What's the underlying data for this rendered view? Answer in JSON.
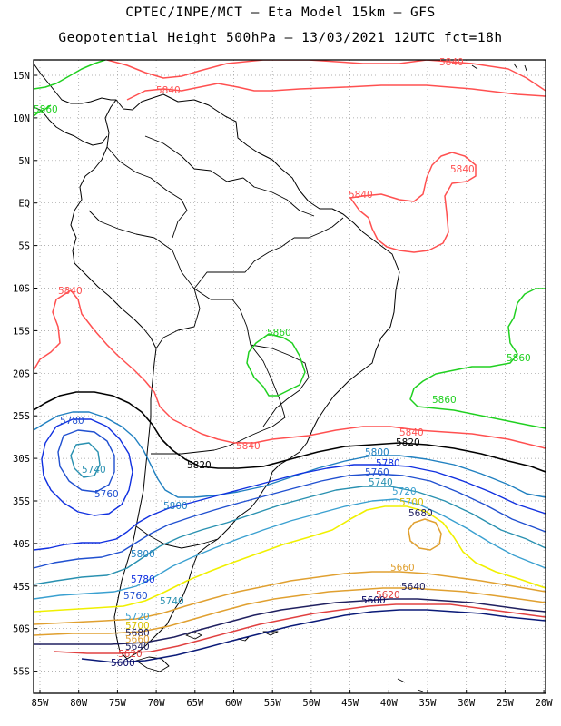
{
  "header": {
    "line1": "CPTEC/INPE/MCT —  Eta Model 15km — GFS",
    "line2": "Geopotential Height 500hPa — 13/03/2021 12UTC fct=18h"
  },
  "axes": {
    "lat_ticks": [
      "15N",
      "10N",
      "5N",
      "EQ",
      "5S",
      "10S",
      "15S",
      "20S",
      "25S",
      "30S",
      "35S",
      "40S",
      "45S",
      "50S",
      "55S"
    ],
    "lon_ticks": [
      "85W",
      "80W",
      "75W",
      "70W",
      "65W",
      "60W",
      "55W",
      "50W",
      "45W",
      "40W",
      "35W",
      "30W",
      "25W",
      "20W"
    ]
  },
  "colors": {
    "c5580": "#000060",
    "c5600": "#0a1a78",
    "c5620": "#e04040",
    "c5640": "#202060",
    "c5660": "#e0a030",
    "c5680": "#e0a030",
    "c5700": "#f0f000",
    "c5720": "#3aa0d0",
    "c5740": "#2890b0",
    "c5760": "#2050d0",
    "c5780": "#1030e0",
    "c5800": "#2080c0",
    "c5820": "#000000",
    "c5840": "#ff5050",
    "c5860": "#20d020",
    "coast": "#000000"
  },
  "contour_labels": [
    {
      "id": "l5840a",
      "text": "5840"
    },
    {
      "id": "l5840b",
      "text": "5840"
    },
    {
      "id": "l5840c",
      "text": "5840"
    },
    {
      "id": "l5840d",
      "text": "5840"
    },
    {
      "id": "l5840e",
      "text": "5840"
    },
    {
      "id": "l5840f",
      "text": "5840"
    },
    {
      "id": "l5840g",
      "text": "5840"
    },
    {
      "id": "l5860a",
      "text": "5860"
    },
    {
      "id": "l5860b",
      "text": "5860"
    },
    {
      "id": "l5860c",
      "text": "5860"
    },
    {
      "id": "l5860d",
      "text": "5860"
    },
    {
      "id": "l5780a",
      "text": "5780"
    },
    {
      "id": "l5740a",
      "text": "5740"
    },
    {
      "id": "l5760a",
      "text": "5760"
    },
    {
      "id": "l5820a",
      "text": "5820"
    },
    {
      "id": "l5820b",
      "text": "5820"
    },
    {
      "id": "l5800a",
      "text": "5800"
    },
    {
      "id": "l5800b",
      "text": "5800"
    },
    {
      "id": "l5800c",
      "text": "5800"
    },
    {
      "id": "l5780b",
      "text": "5780"
    },
    {
      "id": "l5760b",
      "text": "5760"
    },
    {
      "id": "l5740b",
      "text": "5740"
    },
    {
      "id": "l5720a",
      "text": "5720"
    },
    {
      "id": "l5700a",
      "text": "5700"
    },
    {
      "id": "l5680a",
      "text": "5680"
    },
    {
      "id": "l5660a",
      "text": "5660"
    },
    {
      "id": "l5640a",
      "text": "5640"
    },
    {
      "id": "l5600a",
      "text": "5600"
    },
    {
      "id": "l5620a",
      "text": "5620"
    },
    {
      "id": "l5780c",
      "text": "5780"
    },
    {
      "id": "l5760c",
      "text": "5760"
    },
    {
      "id": "l5740c",
      "text": "5740"
    },
    {
      "id": "l5720b",
      "text": "5720"
    },
    {
      "id": "l5700b",
      "text": "5700"
    },
    {
      "id": "l5680b",
      "text": "5680"
    },
    {
      "id": "l5660b",
      "text": "5660"
    },
    {
      "id": "l5640b",
      "text": "5640"
    },
    {
      "id": "l5620b",
      "text": "5620"
    },
    {
      "id": "l5600b",
      "text": "5600"
    }
  ]
}
